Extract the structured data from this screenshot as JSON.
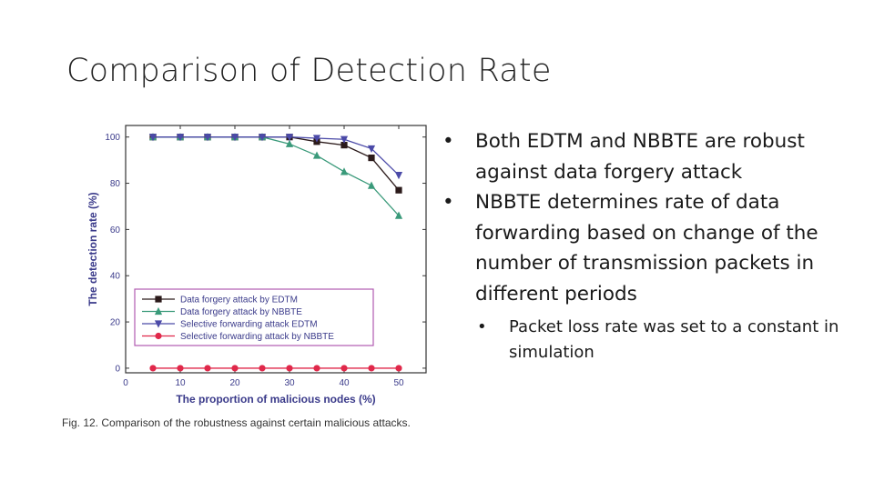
{
  "slide": {
    "title": "Comparison of Detection Rate"
  },
  "bullets": [
    {
      "text": "Both EDTM and NBBTE are robust against data forgery attack"
    },
    {
      "text": "NBBTE determines rate of data forwarding based on change of the number of transmission packets in different periods"
    }
  ],
  "sub_bullets": [
    {
      "text": "Packet loss rate was set to a constant in simulation"
    }
  ],
  "figure": {
    "caption": "Fig. 12. Comparison of the robustness against certain malicious attacks."
  },
  "colors": {
    "edtm_forgery": "#2b1a1a",
    "nbbte_forgery": "#3a9a7a",
    "edtm_selective": "#4b4aa8",
    "nbbte_selective": "#e0284a",
    "frame": "#b05bb0"
  },
  "chart_data": {
    "type": "line",
    "xlabel": "The proportion of malicious nodes (%)",
    "ylabel": "The detection rate (%)",
    "xlim": [
      0,
      55
    ],
    "ylim": [
      -2,
      105
    ],
    "xticks": [
      0,
      10,
      20,
      30,
      40,
      50
    ],
    "yticks": [
      0,
      20,
      40,
      60,
      80,
      100
    ],
    "grid": false,
    "legend_position": "lower-left",
    "x": [
      5,
      10,
      15,
      20,
      25,
      30,
      35,
      40,
      45,
      50
    ],
    "series": [
      {
        "name": "Data forgery attack by EDTM",
        "marker": "square",
        "values": [
          100,
          100,
          100,
          100,
          100,
          100,
          98,
          96.5,
          91,
          77
        ]
      },
      {
        "name": "Data forgery attack by NBBTE",
        "marker": "triangle-up",
        "values": [
          100,
          100,
          100,
          100,
          100,
          97,
          92,
          85,
          79,
          66
        ]
      },
      {
        "name": "Selective forwarding attack EDTM",
        "marker": "triangle-down",
        "values": [
          100,
          100,
          100,
          100,
          100,
          100,
          99.5,
          99,
          95,
          83.5
        ]
      },
      {
        "name": "Selective forwarding attack by NBBTE",
        "marker": "circle",
        "values": [
          0,
          0,
          0,
          0,
          0,
          0,
          0,
          0,
          0,
          0
        ]
      }
    ]
  }
}
